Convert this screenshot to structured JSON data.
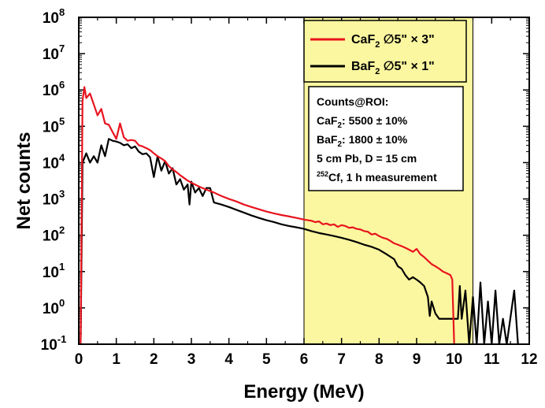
{
  "chart_data": {
    "type": "line",
    "title": "",
    "xlabel": "Energy (MeV)",
    "ylabel": "Net counts",
    "xlim": [
      0,
      12
    ],
    "ylim_exponents": [
      -1,
      8
    ],
    "y_scale": "log",
    "x_ticks": [
      "0",
      "1",
      "2",
      "3",
      "4",
      "5",
      "6",
      "7",
      "8",
      "9",
      "10",
      "11",
      "12"
    ],
    "y_ticks": [
      {
        "base": "10",
        "exp": "-1"
      },
      {
        "base": "10",
        "exp": "0"
      },
      {
        "base": "10",
        "exp": "1"
      },
      {
        "base": "10",
        "exp": "2"
      },
      {
        "base": "10",
        "exp": "3"
      },
      {
        "base": "10",
        "exp": "4"
      },
      {
        "base": "10",
        "exp": "5"
      },
      {
        "base": "10",
        "exp": "6"
      },
      {
        "base": "10",
        "exp": "7"
      },
      {
        "base": "10",
        "exp": "8"
      }
    ],
    "roi": {
      "x_start": 6.0,
      "x_end": 10.5,
      "color": "#fbf7a0"
    },
    "legend": {
      "position": "top-right",
      "entries": [
        {
          "formula": "CaF",
          "sub": "2",
          "dims": " ∅5\" × 3\"",
          "color": "#e8141e"
        },
        {
          "formula": "BaF",
          "sub": "2",
          "dims": " ∅5\" × 1\"",
          "color": "#000000"
        }
      ]
    },
    "annotation": {
      "line1": "Counts@ROI:",
      "line2": {
        "a": "CaF",
        "sub": "2",
        "b": ": 5500 ± 10%"
      },
      "line3": {
        "a": "BaF",
        "sub": "2",
        "b": ": 1800 ± 10%"
      },
      "line4": "5 cm Pb, D = 15 cm",
      "line5": {
        "sup": "252",
        "b": "Cf, 1 h measurement"
      }
    },
    "series": [
      {
        "name": "CaF2 ∅5\" × 3\"",
        "color": "#e8141e",
        "points": [
          [
            0.05,
            0.1
          ],
          [
            0.1,
            500000.0
          ],
          [
            0.15,
            1200000.0
          ],
          [
            0.2,
            600000.0
          ],
          [
            0.3,
            800000.0
          ],
          [
            0.4,
            400000.0
          ],
          [
            0.5,
            200000.0
          ],
          [
            0.6,
            300000.0
          ],
          [
            0.7,
            120000.0
          ],
          [
            0.8,
            110000.0
          ],
          [
            0.9,
            70000.0
          ],
          [
            1.0,
            45000.0
          ],
          [
            1.1,
            120000.0
          ],
          [
            1.2,
            50000.0
          ],
          [
            1.3,
            40000.0
          ],
          [
            1.4,
            42000.0
          ],
          [
            1.5,
            40000.0
          ],
          [
            1.6,
            30000.0
          ],
          [
            1.7,
            28000.0
          ],
          [
            1.8,
            25000.0
          ],
          [
            1.9,
            22000.0
          ],
          [
            2.0,
            18000.0
          ],
          [
            2.1,
            15000.0
          ],
          [
            2.2,
            13000.0
          ],
          [
            2.3,
            11000.0
          ],
          [
            2.4,
            8000.0
          ],
          [
            2.5,
            6500.0
          ],
          [
            2.6,
            5500.0
          ],
          [
            2.7,
            4500.0
          ],
          [
            2.8,
            3800.0
          ],
          [
            2.9,
            3200.0
          ],
          [
            3.0,
            2800.0
          ],
          [
            3.2,
            2200.0
          ],
          [
            3.4,
            1800.0
          ],
          [
            3.6,
            1500.0
          ],
          [
            3.8,
            1200.0
          ],
          [
            4.0,
            1000.0
          ],
          [
            4.2,
            850
          ],
          [
            4.4,
            700
          ],
          [
            4.6,
            600
          ],
          [
            4.8,
            520
          ],
          [
            5.0,
            450
          ],
          [
            5.2,
            400
          ],
          [
            5.4,
            360
          ],
          [
            5.6,
            330
          ],
          [
            5.8,
            300
          ],
          [
            6.0,
            270
          ],
          [
            6.1,
            260
          ],
          [
            6.2,
            250
          ],
          [
            6.3,
            230
          ],
          [
            6.4,
            240
          ],
          [
            6.5,
            200
          ],
          [
            6.6,
            210
          ],
          [
            6.7,
            190
          ],
          [
            6.8,
            200
          ],
          [
            6.9,
            170
          ],
          [
            7.0,
            190
          ],
          [
            7.1,
            180
          ],
          [
            7.2,
            160
          ],
          [
            7.3,
            165
          ],
          [
            7.4,
            150
          ],
          [
            7.5,
            145
          ],
          [
            7.6,
            130
          ],
          [
            7.7,
            125
          ],
          [
            7.8,
            105
          ],
          [
            7.9,
            110
          ],
          [
            8.0,
            95
          ],
          [
            8.1,
            85
          ],
          [
            8.2,
            80
          ],
          [
            8.3,
            70
          ],
          [
            8.4,
            60
          ],
          [
            8.5,
            55
          ],
          [
            8.6,
            50
          ],
          [
            8.7,
            45
          ],
          [
            8.8,
            40
          ],
          [
            8.9,
            35
          ],
          [
            9.0,
            42
          ],
          [
            9.1,
            30
          ],
          [
            9.2,
            25
          ],
          [
            9.3,
            20
          ],
          [
            9.4,
            16
          ],
          [
            9.5,
            14
          ],
          [
            9.6,
            12
          ],
          [
            9.7,
            10
          ],
          [
            9.8,
            9
          ],
          [
            9.9,
            8
          ],
          [
            9.95,
            6
          ],
          [
            10.0,
            0.1
          ]
        ]
      },
      {
        "name": "BaF2 ∅5\" × 1\"",
        "color": "#000000",
        "points": [
          [
            0.05,
            0.1
          ],
          [
            0.1,
            10000.0
          ],
          [
            0.2,
            18000.0
          ],
          [
            0.3,
            10000.0
          ],
          [
            0.4,
            15000.0
          ],
          [
            0.5,
            10000.0
          ],
          [
            0.6,
            30000.0
          ],
          [
            0.7,
            15000.0
          ],
          [
            0.8,
            45000.0
          ],
          [
            0.9,
            40000.0
          ],
          [
            1.0,
            38000.0
          ],
          [
            1.1,
            35000.0
          ],
          [
            1.2,
            30000.0
          ],
          [
            1.3,
            32000.0
          ],
          [
            1.4,
            25000.0
          ],
          [
            1.5,
            28000.0
          ],
          [
            1.6,
            20000.0
          ],
          [
            1.7,
            17000.0
          ],
          [
            1.8,
            18000.0
          ],
          [
            1.9,
            14000.0
          ],
          [
            2.0,
            4000.0
          ],
          [
            2.1,
            15000.0
          ],
          [
            2.2,
            6000.0
          ],
          [
            2.3,
            11000.0
          ],
          [
            2.4,
            5000.0
          ],
          [
            2.5,
            7000.0
          ],
          [
            2.6,
            2500.0
          ],
          [
            2.7,
            3500.0
          ],
          [
            2.8,
            1800.0
          ],
          [
            2.9,
            2500.0
          ],
          [
            2.95,
            700
          ],
          [
            3.0,
            3000.0
          ],
          [
            3.1,
            1500.0
          ],
          [
            3.2,
            2000.0
          ],
          [
            3.3,
            1200.0
          ],
          [
            3.4,
            2000.0
          ],
          [
            3.5,
            2000.0
          ],
          [
            3.6,
            800
          ],
          [
            3.8,
            700
          ],
          [
            4.0,
            600
          ],
          [
            4.2,
            500
          ],
          [
            4.4,
            420
          ],
          [
            4.6,
            350
          ],
          [
            4.8,
            300
          ],
          [
            5.0,
            260
          ],
          [
            5.2,
            230
          ],
          [
            5.4,
            200
          ],
          [
            5.6,
            180
          ],
          [
            5.8,
            165
          ],
          [
            6.0,
            150
          ],
          [
            6.2,
            130
          ],
          [
            6.4,
            115
          ],
          [
            6.6,
            105
          ],
          [
            6.8,
            95
          ],
          [
            7.0,
            85
          ],
          [
            7.2,
            75
          ],
          [
            7.4,
            65
          ],
          [
            7.6,
            55
          ],
          [
            7.8,
            48
          ],
          [
            8.0,
            40
          ],
          [
            8.2,
            30
          ],
          [
            8.4,
            22
          ],
          [
            8.5,
            14
          ],
          [
            8.6,
            12
          ],
          [
            8.7,
            8
          ],
          [
            8.8,
            6
          ],
          [
            8.9,
            7
          ],
          [
            9.0,
            6
          ],
          [
            9.1,
            5
          ],
          [
            9.2,
            4
          ],
          [
            9.3,
            2
          ],
          [
            9.35,
            0.6
          ],
          [
            9.4,
            1.5
          ],
          [
            9.5,
            0.7
          ],
          [
            9.6,
            0.5
          ],
          [
            9.7,
            0.5
          ],
          [
            9.8,
            0.5
          ],
          [
            9.9,
            0.5
          ],
          [
            10.0,
            0.5
          ],
          [
            10.1,
            0.5
          ],
          [
            10.15,
            4
          ],
          [
            10.2,
            0.5
          ],
          [
            10.3,
            3
          ],
          [
            10.4,
            0.1
          ],
          [
            10.5,
            2
          ],
          [
            10.6,
            0.1
          ],
          [
            10.7,
            5
          ],
          [
            10.8,
            0.1
          ],
          [
            10.9,
            1.5
          ],
          [
            11.0,
            0.1
          ],
          [
            11.1,
            3
          ],
          [
            11.2,
            0.1
          ],
          [
            11.3,
            0.5
          ],
          [
            11.4,
            0.1
          ],
          [
            11.6,
            3
          ],
          [
            11.7,
            0.1
          ]
        ]
      }
    ]
  }
}
